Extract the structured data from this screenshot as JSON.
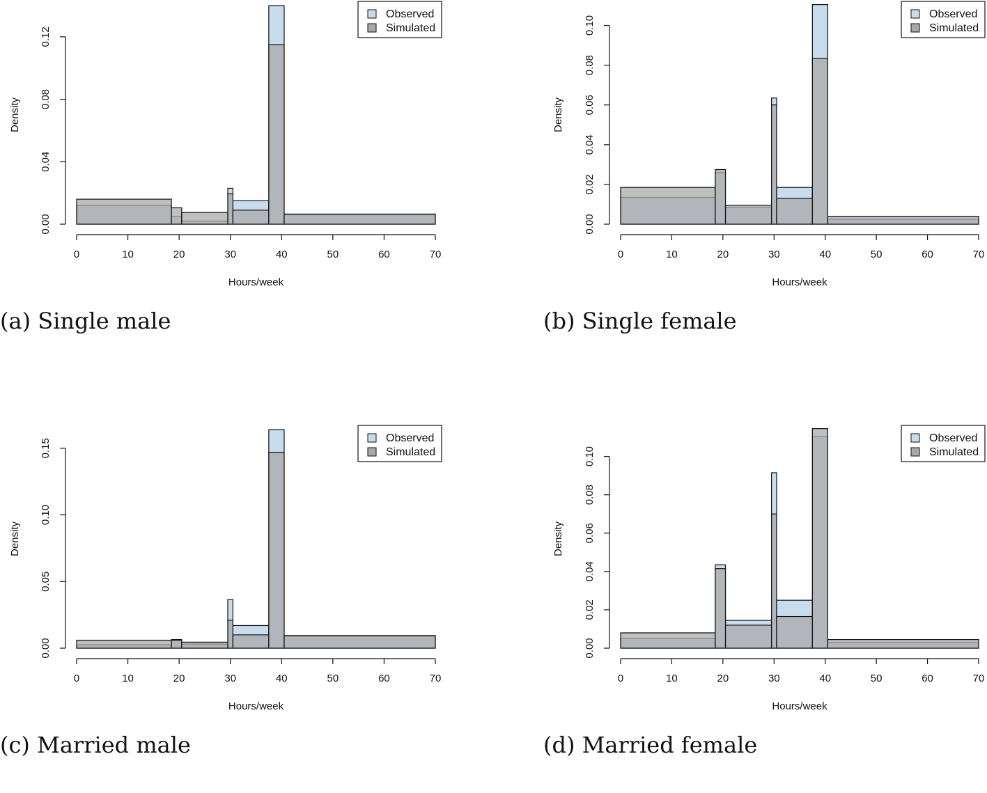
{
  "chart_data": [
    {
      "type": "bar",
      "caption": "(a) Single male",
      "xlabel": "Hours/week",
      "ylabel": "Density",
      "xlim": [
        0,
        70
      ],
      "ylim": [
        0,
        0.14
      ],
      "xticks": [
        "0",
        "10",
        "20",
        "30",
        "40",
        "50",
        "60",
        "70"
      ],
      "yticks": [
        "0.00",
        "0.04",
        "0.08",
        "0.12"
      ],
      "legend": {
        "position": "top-right",
        "entries": [
          "Observed",
          "Simulated"
        ]
      },
      "series": [
        {
          "name": "Observed",
          "color": "#c9dcee",
          "bins": [
            {
              "x0": 0,
              "x1": 18.5,
              "y": 0.012
            },
            {
              "x0": 18.5,
              "x1": 20.5,
              "y": 0.005
            },
            {
              "x0": 20.5,
              "x1": 29.5,
              "y": 0.002
            },
            {
              "x0": 29.5,
              "x1": 30.5,
              "y": 0.023
            },
            {
              "x0": 30.5,
              "x1": 37.5,
              "y": 0.015
            },
            {
              "x0": 37.5,
              "x1": 40.5,
              "y": 0.14
            },
            {
              "x0": 40.5,
              "x1": 70,
              "y": 0.006
            }
          ]
        },
        {
          "name": "Simulated",
          "color": "#a9a9a9",
          "bins": [
            {
              "x0": 0,
              "x1": 18.5,
              "y": 0.016
            },
            {
              "x0": 18.5,
              "x1": 20.5,
              "y": 0.0105
            },
            {
              "x0": 20.5,
              "x1": 29.5,
              "y": 0.0075
            },
            {
              "x0": 29.5,
              "x1": 30.5,
              "y": 0.0195
            },
            {
              "x0": 30.5,
              "x1": 37.5,
              "y": 0.009
            },
            {
              "x0": 37.5,
              "x1": 40.5,
              "y": 0.115
            },
            {
              "x0": 40.5,
              "x1": 70,
              "y": 0.0065
            }
          ]
        }
      ]
    },
    {
      "type": "bar",
      "caption": "(b) Single female",
      "xlabel": "Hours/week",
      "ylabel": "Density",
      "xlim": [
        0,
        70
      ],
      "ylim": [
        0,
        0.11
      ],
      "xticks": [
        "0",
        "10",
        "20",
        "30",
        "40",
        "50",
        "60",
        "70"
      ],
      "yticks": [
        "0.00",
        "0.02",
        "0.04",
        "0.06",
        "0.08",
        "0.10"
      ],
      "legend": {
        "position": "top-right",
        "entries": [
          "Observed",
          "Simulated"
        ]
      },
      "series": [
        {
          "name": "Observed",
          "color": "#c9dcee",
          "bins": [
            {
              "x0": 0,
              "x1": 18.5,
              "y": 0.0135
            },
            {
              "x0": 18.5,
              "x1": 20.5,
              "y": 0.026
            },
            {
              "x0": 20.5,
              "x1": 29.5,
              "y": 0.0085
            },
            {
              "x0": 29.5,
              "x1": 30.5,
              "y": 0.0635
            },
            {
              "x0": 30.5,
              "x1": 37.5,
              "y": 0.0185
            },
            {
              "x0": 37.5,
              "x1": 40.5,
              "y": 0.1105
            },
            {
              "x0": 40.5,
              "x1": 70,
              "y": 0.0025
            }
          ]
        },
        {
          "name": "Simulated",
          "color": "#a9a9a9",
          "bins": [
            {
              "x0": 0,
              "x1": 18.5,
              "y": 0.0185
            },
            {
              "x0": 18.5,
              "x1": 20.5,
              "y": 0.0275
            },
            {
              "x0": 20.5,
              "x1": 29.5,
              "y": 0.0095
            },
            {
              "x0": 29.5,
              "x1": 30.5,
              "y": 0.06
            },
            {
              "x0": 30.5,
              "x1": 37.5,
              "y": 0.013
            },
            {
              "x0": 37.5,
              "x1": 40.5,
              "y": 0.0835
            },
            {
              "x0": 40.5,
              "x1": 70,
              "y": 0.004
            }
          ]
        }
      ]
    },
    {
      "type": "bar",
      "caption": "(c) Married male",
      "xlabel": "Hours/week",
      "ylabel": "Density",
      "xlim": [
        0,
        70
      ],
      "ylim": [
        0,
        0.164
      ],
      "xticks": [
        "0",
        "10",
        "20",
        "30",
        "40",
        "50",
        "60",
        "70"
      ],
      "yticks": [
        "0.00",
        "0.05",
        "0.10",
        "0.15"
      ],
      "legend": {
        "position": "top-right",
        "entries": [
          "Observed",
          "Simulated"
        ]
      },
      "series": [
        {
          "name": "Observed",
          "color": "#c9dcee",
          "bins": [
            {
              "x0": 0,
              "x1": 18.5,
              "y": 0.0025
            },
            {
              "x0": 18.5,
              "x1": 20.5,
              "y": 0.0065
            },
            {
              "x0": 20.5,
              "x1": 29.5,
              "y": 0.003
            },
            {
              "x0": 29.5,
              "x1": 30.5,
              "y": 0.0365
            },
            {
              "x0": 30.5,
              "x1": 37.5,
              "y": 0.017
            },
            {
              "x0": 37.5,
              "x1": 40.5,
              "y": 0.164
            },
            {
              "x0": 40.5,
              "x1": 70,
              "y": 0.009
            }
          ]
        },
        {
          "name": "Simulated",
          "color": "#a9a9a9",
          "bins": [
            {
              "x0": 0,
              "x1": 18.5,
              "y": 0.006
            },
            {
              "x0": 18.5,
              "x1": 20.5,
              "y": 0.006
            },
            {
              "x0": 20.5,
              "x1": 29.5,
              "y": 0.0045
            },
            {
              "x0": 29.5,
              "x1": 30.5,
              "y": 0.021
            },
            {
              "x0": 30.5,
              "x1": 37.5,
              "y": 0.01
            },
            {
              "x0": 37.5,
              "x1": 40.5,
              "y": 0.147
            },
            {
              "x0": 40.5,
              "x1": 70,
              "y": 0.0095
            }
          ]
        }
      ]
    },
    {
      "type": "bar",
      "caption": "(d) Married female",
      "xlabel": "Hours/week",
      "ylabel": "Density",
      "xlim": [
        0,
        70
      ],
      "ylim": [
        0,
        0.114
      ],
      "xticks": [
        "0",
        "10",
        "20",
        "30",
        "40",
        "50",
        "60",
        "70"
      ],
      "yticks": [
        "0.00",
        "0.02",
        "0.04",
        "0.06",
        "0.08",
        "0.10"
      ],
      "legend": {
        "position": "top-right",
        "entries": [
          "Observed",
          "Simulated"
        ]
      },
      "series": [
        {
          "name": "Observed",
          "color": "#c9dcee",
          "bins": [
            {
              "x0": 0,
              "x1": 18.5,
              "y": 0.005
            },
            {
              "x0": 18.5,
              "x1": 20.5,
              "y": 0.0435
            },
            {
              "x0": 20.5,
              "x1": 29.5,
              "y": 0.0145
            },
            {
              "x0": 29.5,
              "x1": 30.5,
              "y": 0.0915
            },
            {
              "x0": 30.5,
              "x1": 37.5,
              "y": 0.025
            },
            {
              "x0": 37.5,
              "x1": 40.5,
              "y": 0.1105
            },
            {
              "x0": 40.5,
              "x1": 70,
              "y": 0.003
            }
          ]
        },
        {
          "name": "Simulated",
          "color": "#a9a9a9",
          "bins": [
            {
              "x0": 0,
              "x1": 18.5,
              "y": 0.008
            },
            {
              "x0": 18.5,
              "x1": 20.5,
              "y": 0.0415
            },
            {
              "x0": 20.5,
              "x1": 29.5,
              "y": 0.012
            },
            {
              "x0": 29.5,
              "x1": 30.5,
              "y": 0.07
            },
            {
              "x0": 30.5,
              "x1": 37.5,
              "y": 0.0165
            },
            {
              "x0": 37.5,
              "x1": 40.5,
              "y": 0.1145
            },
            {
              "x0": 40.5,
              "x1": 70,
              "y": 0.0045
            }
          ]
        }
      ]
    }
  ]
}
